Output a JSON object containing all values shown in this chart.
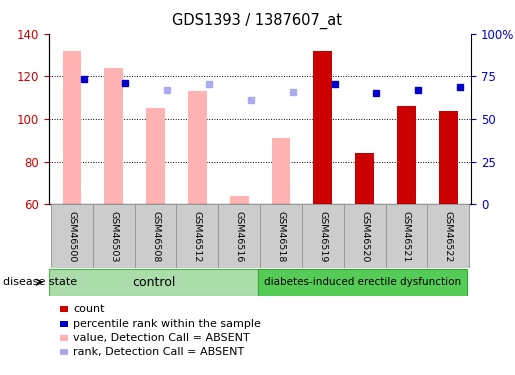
{
  "title": "GDS1393 / 1387607_at",
  "samples": [
    "GSM46500",
    "GSM46503",
    "GSM46508",
    "GSM46512",
    "GSM46516",
    "GSM46518",
    "GSM46519",
    "GSM46520",
    "GSM46521",
    "GSM46522"
  ],
  "group_label_control": "control",
  "group_label_disease": "diabetes-induced erectile dysfunction",
  "disease_state_label": "disease state",
  "ylim": [
    60,
    140
  ],
  "yticks_left": [
    60,
    80,
    100,
    120,
    140
  ],
  "yticks_right": [
    0,
    25,
    50,
    75,
    100
  ],
  "absent_value_bars": {
    "GSM46500": 132,
    "GSM46503": 124,
    "GSM46508": 105,
    "GSM46512": 113,
    "GSM46516": 64,
    "GSM46518": 91,
    "GSM46519": null,
    "GSM46520": null,
    "GSM46521": null,
    "GSM46522": null
  },
  "absent_rank_markers": {
    "GSM46500": null,
    "GSM46503": null,
    "GSM46508": 94,
    "GSM46512": 99,
    "GSM46516": 86,
    "GSM46518": 92,
    "GSM46519": null,
    "GSM46520": null,
    "GSM46521": null,
    "GSM46522": null
  },
  "present_value_bars": {
    "GSM46500": null,
    "GSM46503": null,
    "GSM46508": null,
    "GSM46512": null,
    "GSM46516": null,
    "GSM46518": null,
    "GSM46519": 132,
    "GSM46520": 84,
    "GSM46521": 106,
    "GSM46522": 104
  },
  "present_rank_markers": {
    "GSM46500": 103,
    "GSM46503": 100,
    "GSM46508": null,
    "GSM46512": null,
    "GSM46516": null,
    "GSM46518": null,
    "GSM46519": 99,
    "GSM46520": 91,
    "GSM46521": 94,
    "GSM46522": 96
  },
  "absent_bar_color": "#ffb3b3",
  "present_bar_color": "#cc0000",
  "absent_rank_color": "#aaaaee",
  "present_rank_color": "#0000cc",
  "tick_color_left": "#cc0000",
  "tick_color_right": "#0000cc",
  "control_group_color": "#aaddaa",
  "disease_group_color": "#55cc55",
  "sample_box_color": "#cccccc",
  "legend_items": [
    "count",
    "percentile rank within the sample",
    "value, Detection Call = ABSENT",
    "rank, Detection Call = ABSENT"
  ],
  "legend_colors": [
    "#cc0000",
    "#0000cc",
    "#ffb3b3",
    "#aaaaee"
  ]
}
